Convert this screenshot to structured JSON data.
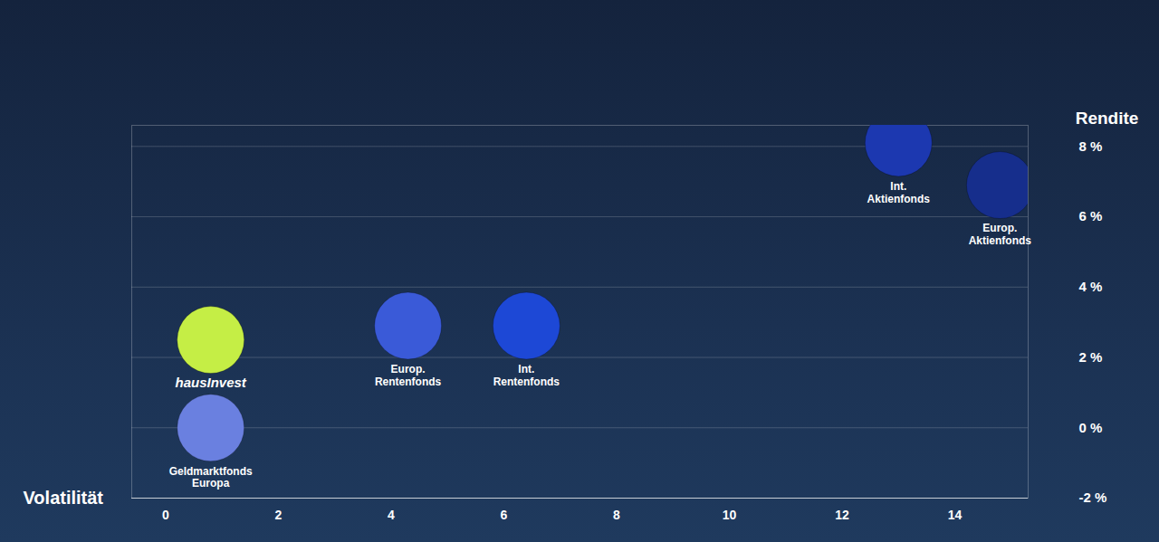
{
  "chart_data": {
    "type": "scatter",
    "x_label": "Volatilität",
    "y_label": "Rendite",
    "categories": [
      "hausInvest",
      "Geldmarktfonds\nEuropa",
      "Europ.\nRentenfonds",
      "Int.\nRentenfonds",
      "Int.\nAktienfonds",
      "Europ.\nAktienfonds"
    ],
    "x": [
      0.8,
      0.8,
      4.3,
      6.4,
      13.0,
      14.8
    ],
    "values": [
      2.5,
      0,
      2.9,
      2.9,
      8.1,
      6.9
    ],
    "colors": [
      "#c5ee45",
      "#6a80e0",
      "#3a5ad8",
      "#1d48d6",
      "#1c38b0",
      "#162e8c"
    ],
    "xlim": [
      -0.6,
      15.3
    ],
    "ylim": [
      -2,
      8.6
    ],
    "xticks": [
      0,
      2,
      4,
      6,
      8,
      10,
      12,
      14
    ],
    "yticks": [
      {
        "value": -2,
        "label": "-2 %"
      },
      {
        "value": 0,
        "label": "0 %"
      },
      {
        "value": 2,
        "label": "2 %"
      },
      {
        "value": 4,
        "label": "4 %"
      },
      {
        "value": 6,
        "label": "6 %"
      },
      {
        "value": 8,
        "label": "8 %"
      }
    ],
    "grid": true
  }
}
